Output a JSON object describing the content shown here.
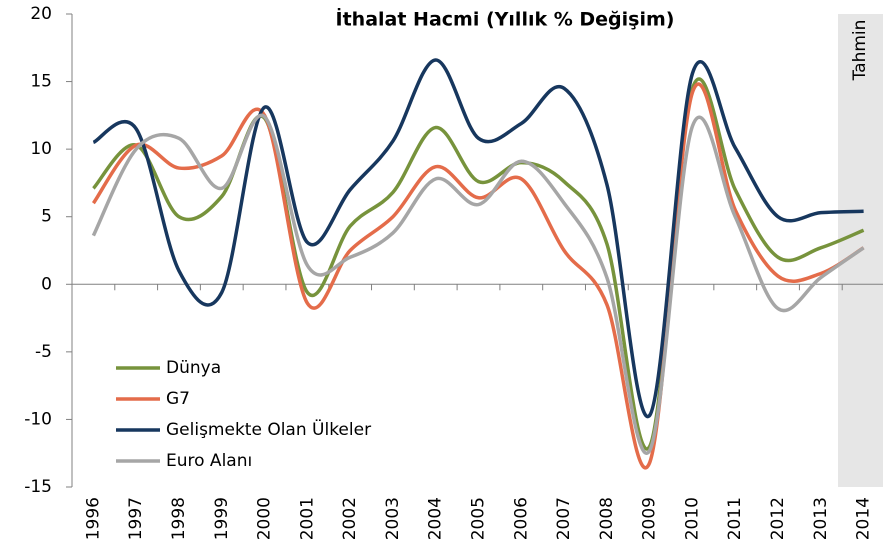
{
  "chart_data": {
    "type": "line",
    "title": "İthalat Hacmi (Yıllık % Değişim)",
    "annotation": "Tahmin",
    "categories": [
      "1996",
      "1997",
      "1998",
      "1999",
      "2000",
      "2001",
      "2002",
      "2003",
      "2004",
      "2005",
      "2006",
      "2007",
      "2008",
      "2009",
      "2010",
      "2011",
      "2012",
      "2013",
      "2014"
    ],
    "series": [
      {
        "name": "Dünya",
        "color": "#77933c",
        "values": [
          7.1,
          10.3,
          5.0,
          6.5,
          12.3,
          -0.6,
          4.3,
          6.8,
          11.6,
          7.6,
          9.0,
          7.6,
          3.0,
          -12.0,
          14.5,
          7.0,
          2.0,
          2.7,
          4.0
        ]
      },
      {
        "name": "G7",
        "color": "#e46c4a",
        "values": [
          6.0,
          10.3,
          8.6,
          9.5,
          12.5,
          -1.4,
          2.5,
          5.0,
          8.7,
          6.4,
          7.8,
          2.5,
          -1.5,
          -13.2,
          14.2,
          5.5,
          0.6,
          0.8,
          2.7
        ]
      },
      {
        "name": "Gelişmekte Olan Ülkeler",
        "color": "#17375e",
        "values": [
          10.5,
          11.5,
          1.0,
          -0.6,
          13.1,
          3.1,
          7.0,
          10.6,
          16.6,
          10.8,
          11.9,
          14.5,
          7.4,
          -9.7,
          15.6,
          10.1,
          5.0,
          5.3,
          5.4
        ]
      },
      {
        "name": "Euro Alanı",
        "color": "#a6a6a6",
        "values": [
          3.6,
          10.0,
          10.8,
          7.1,
          12.4,
          1.4,
          2.0,
          3.8,
          7.8,
          5.9,
          9.1,
          6.0,
          0.5,
          -12.3,
          11.7,
          5.0,
          -1.8,
          0.5,
          2.7
        ]
      }
    ],
    "ylim": [
      -15,
      20
    ],
    "yticks": [
      -15,
      -10,
      -5,
      0,
      5,
      10,
      15,
      20
    ]
  }
}
